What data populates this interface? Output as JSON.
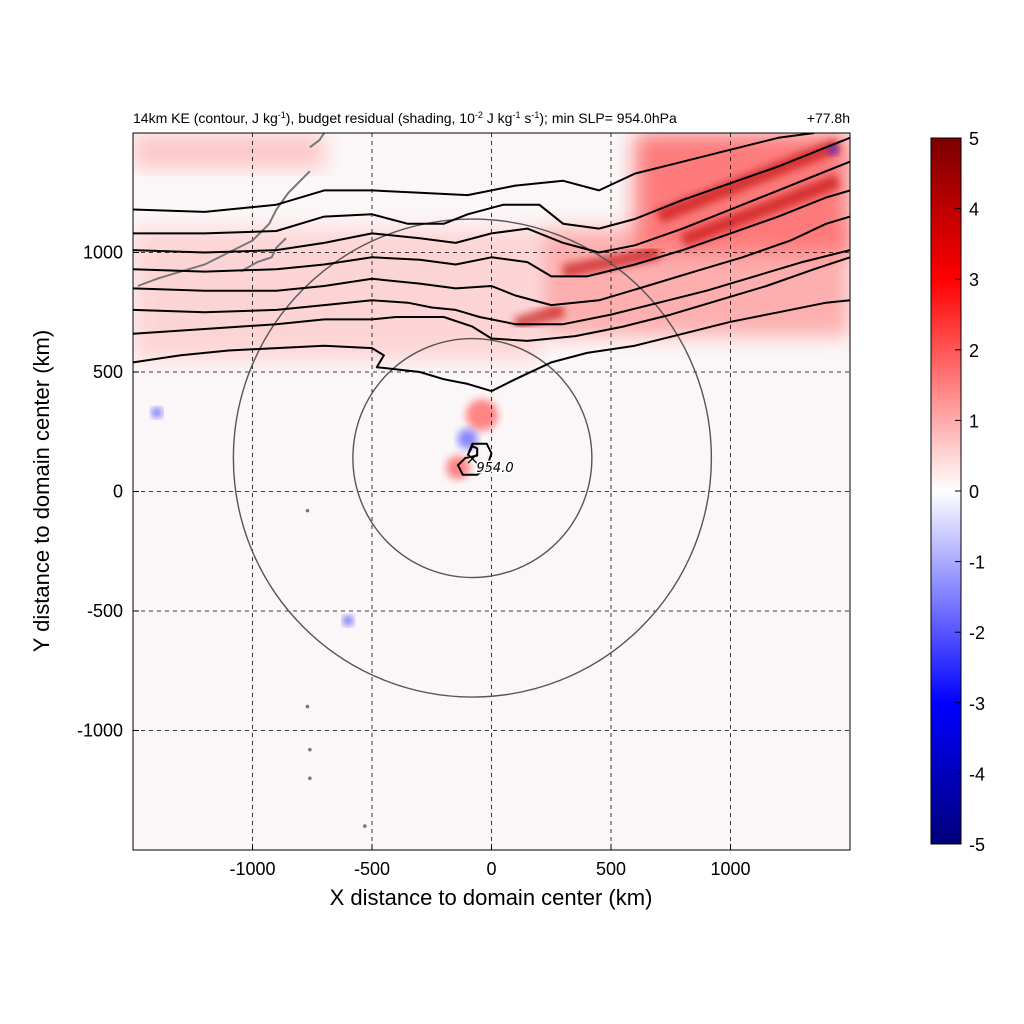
{
  "chart_data": {
    "type": "heatmap",
    "title_left_parts": {
      "a": "14km KE (contour, J kg",
      "a_sup": "-1",
      "b": "), budget residual (shading, 10",
      "b_sup": "-2",
      "c": " J kg",
      "c_sup": "-1",
      "d": " s",
      "d_sup": "-1",
      "e": "); min SLP= 954.0hPa"
    },
    "title_right": "+77.8h",
    "xlabel": "X distance to domain center (km)",
    "ylabel": "Y distance to domain center (km)",
    "xlim": [
      -1500,
      1500
    ],
    "ylim": [
      -1500,
      1500
    ],
    "x_ticks": [
      -1000,
      -500,
      0,
      500,
      1000
    ],
    "y_ticks": [
      -1000,
      -500,
      0,
      500,
      1000
    ],
    "x_tick_labels": [
      "-1000",
      "-500",
      "0",
      "500",
      "1000"
    ],
    "y_tick_labels": [
      "-1000",
      "-500",
      "0",
      "500",
      "1000"
    ],
    "grid": "dashed at major ticks",
    "colorbar": {
      "min": -5,
      "max": 5,
      "ticks": [
        "5",
        "4",
        "3",
        "2",
        "1",
        "0",
        "-1",
        "-2",
        "-3",
        "-4",
        "-5"
      ],
      "colormap": [
        "#00007a",
        "#0000ff",
        "#ffffff",
        "#ff0000",
        "#7a0000"
      ]
    },
    "storm_center": {
      "x": -80,
      "y": 140,
      "marker": "×",
      "label": "954.0"
    },
    "range_circles_km": [
      500,
      1000
    ],
    "contours": [
      [
        [
          -1500,
          1180
        ],
        [
          -1200,
          1170
        ],
        [
          -900,
          1200
        ],
        [
          -700,
          1260
        ],
        [
          -500,
          1260
        ],
        [
          -300,
          1250
        ],
        [
          -100,
          1240
        ],
        [
          100,
          1280
        ],
        [
          300,
          1300
        ],
        [
          450,
          1260
        ],
        [
          600,
          1330
        ],
        [
          800,
          1380
        ],
        [
          1000,
          1430
        ],
        [
          1200,
          1480
        ],
        [
          1350,
          1500
        ]
      ],
      [
        [
          -1500,
          1080
        ],
        [
          -1200,
          1080
        ],
        [
          -900,
          1090
        ],
        [
          -700,
          1150
        ],
        [
          -500,
          1160
        ],
        [
          -350,
          1120
        ],
        [
          -200,
          1120
        ],
        [
          -100,
          1160
        ],
        [
          50,
          1200
        ],
        [
          200,
          1200
        ],
        [
          300,
          1120
        ],
        [
          450,
          1100
        ],
        [
          600,
          1140
        ],
        [
          800,
          1220
        ],
        [
          1000,
          1290
        ],
        [
          1200,
          1360
        ],
        [
          1400,
          1440
        ],
        [
          1500,
          1480
        ]
      ],
      [
        [
          -1500,
          1010
        ],
        [
          -1200,
          1000
        ],
        [
          -900,
          1010
        ],
        [
          -700,
          1040
        ],
        [
          -500,
          1080
        ],
        [
          -300,
          1060
        ],
        [
          -150,
          1040
        ],
        [
          0,
          1080
        ],
        [
          150,
          1100
        ],
        [
          300,
          1040
        ],
        [
          450,
          1000
        ],
        [
          600,
          1030
        ],
        [
          800,
          1100
        ],
        [
          1000,
          1180
        ],
        [
          1200,
          1260
        ],
        [
          1400,
          1340
        ],
        [
          1500,
          1380
        ]
      ],
      [
        [
          -1500,
          930
        ],
        [
          -1200,
          920
        ],
        [
          -900,
          930
        ],
        [
          -700,
          950
        ],
        [
          -500,
          980
        ],
        [
          -300,
          970
        ],
        [
          -150,
          950
        ],
        [
          0,
          980
        ],
        [
          150,
          960
        ],
        [
          250,
          900
        ],
        [
          400,
          900
        ],
        [
          600,
          950
        ],
        [
          800,
          1010
        ],
        [
          1000,
          1080
        ],
        [
          1200,
          1150
        ],
        [
          1400,
          1230
        ],
        [
          1500,
          1260
        ]
      ],
      [
        [
          -1500,
          850
        ],
        [
          -1200,
          840
        ],
        [
          -900,
          840
        ],
        [
          -700,
          860
        ],
        [
          -500,
          890
        ],
        [
          -300,
          870
        ],
        [
          -150,
          850
        ],
        [
          0,
          860
        ],
        [
          100,
          820
        ],
        [
          250,
          780
        ],
        [
          450,
          800
        ],
        [
          650,
          860
        ],
        [
          850,
          920
        ],
        [
          1050,
          980
        ],
        [
          1250,
          1050
        ],
        [
          1400,
          1120
        ],
        [
          1500,
          1150
        ]
      ],
      [
        [
          -1500,
          760
        ],
        [
          -1200,
          750
        ],
        [
          -900,
          760
        ],
        [
          -700,
          780
        ],
        [
          -500,
          800
        ],
        [
          -350,
          790
        ],
        [
          -250,
          770
        ],
        [
          -150,
          760
        ],
        [
          -50,
          730
        ],
        [
          100,
          700
        ],
        [
          300,
          700
        ],
        [
          500,
          740
        ],
        [
          700,
          790
        ],
        [
          900,
          840
        ],
        [
          1100,
          900
        ],
        [
          1300,
          960
        ],
        [
          1500,
          1010
        ]
      ],
      [
        [
          -1500,
          660
        ],
        [
          -1200,
          680
        ],
        [
          -900,
          700
        ],
        [
          -700,
          720
        ],
        [
          -500,
          720
        ],
        [
          -400,
          730
        ],
        [
          -200,
          730
        ],
        [
          -80,
          690
        ],
        [
          0,
          640
        ],
        [
          150,
          630
        ],
        [
          350,
          650
        ],
        [
          550,
          690
        ],
        [
          750,
          740
        ],
        [
          950,
          800
        ],
        [
          1150,
          860
        ],
        [
          1350,
          930
        ],
        [
          1500,
          980
        ]
      ],
      [
        [
          -1500,
          540
        ],
        [
          -1300,
          570
        ],
        [
          -1100,
          590
        ],
        [
          -900,
          600
        ],
        [
          -700,
          610
        ],
        [
          -500,
          600
        ],
        [
          -450,
          570
        ],
        [
          -480,
          520
        ],
        [
          -300,
          500
        ],
        [
          -200,
          470
        ],
        [
          -100,
          450
        ],
        [
          0,
          420
        ],
        [
          100,
          470
        ],
        [
          250,
          540
        ],
        [
          400,
          580
        ],
        [
          600,
          610
        ],
        [
          800,
          660
        ],
        [
          1000,
          710
        ],
        [
          1200,
          750
        ],
        [
          1400,
          790
        ],
        [
          1500,
          800
        ]
      ]
    ],
    "storm_core_contour": [
      [
        -100,
        150
      ],
      [
        -80,
        200
      ],
      [
        -20,
        200
      ],
      [
        0,
        160
      ],
      [
        -20,
        100
      ],
      [
        -60,
        70
      ],
      [
        -120,
        70
      ],
      [
        -140,
        110
      ],
      [
        -110,
        140
      ],
      [
        -60,
        150
      ],
      [
        -60,
        180
      ],
      [
        -80,
        190
      ],
      [
        -100,
        150
      ]
    ],
    "positive_shading_regions": [
      {
        "desc": "northeast jet",
        "x": [
          600,
          1500
        ],
        "y": [
          1000,
          1500
        ],
        "max": 5
      },
      {
        "desc": "northwest corner",
        "x": [
          -1500,
          -700
        ],
        "y": [
          1350,
          1500
        ],
        "max": 2
      },
      {
        "desc": "jet band east",
        "x": [
          200,
          1500
        ],
        "y": [
          650,
          1100
        ],
        "max": 3
      },
      {
        "desc": "jet band west",
        "x": [
          -1500,
          200
        ],
        "y": [
          550,
          1100
        ],
        "max": 1.5
      }
    ]
  }
}
